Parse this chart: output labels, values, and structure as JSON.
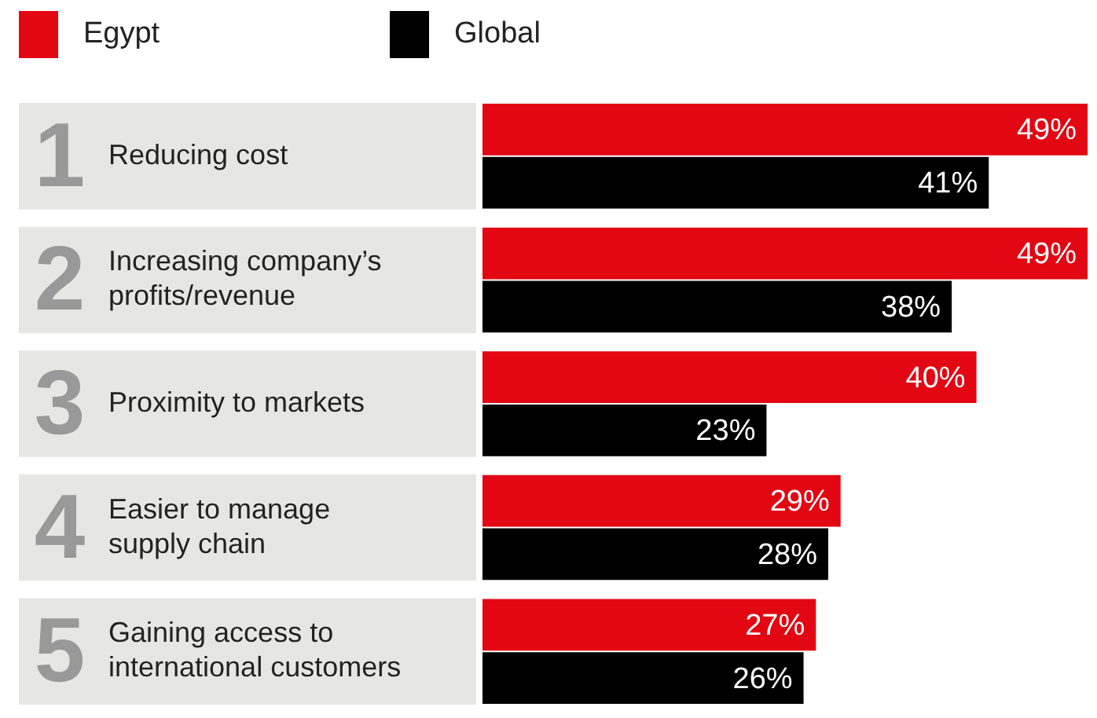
{
  "chart_data": {
    "type": "bar",
    "orientation": "horizontal",
    "categories": [
      "Reducing cost",
      "Increasing company’s profits/revenue",
      "Proximity to markets",
      "Easier to manage supply chain",
      "Gaining access to international customers"
    ],
    "series": [
      {
        "name": "Egypt",
        "color": "#e30613",
        "values": [
          49,
          49,
          40,
          29,
          27
        ],
        "value_labels": [
          "49%",
          "49%",
          "40%",
          "29%",
          "27%"
        ]
      },
      {
        "name": "Global",
        "color": "#000000",
        "values": [
          41,
          38,
          23,
          28,
          26
        ],
        "value_labels": [
          "41%",
          "38%",
          "23%",
          "28%",
          "26%"
        ]
      }
    ],
    "annotations": [
      "1",
      "2",
      "3",
      "4",
      "5"
    ],
    "legend": "top left"
  }
}
